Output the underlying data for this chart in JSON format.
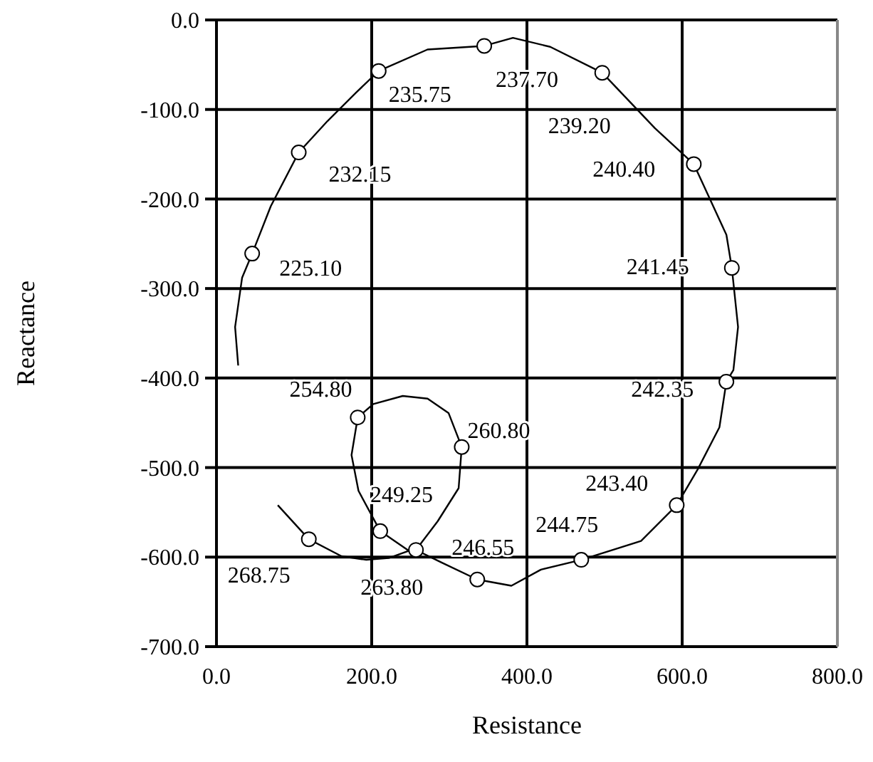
{
  "chart_data": {
    "type": "line",
    "xlabel": "Resistance",
    "ylabel": "Reactance",
    "xlim": [
      0,
      800
    ],
    "ylim": [
      -700,
      0
    ],
    "xticks": [
      {
        "value": 0,
        "label": "0.0"
      },
      {
        "value": 200,
        "label": "200.0"
      },
      {
        "value": 400,
        "label": "400.0"
      },
      {
        "value": 600,
        "label": "600.0"
      },
      {
        "value": 800,
        "label": "800.0"
      }
    ],
    "yticks": [
      {
        "value": -700,
        "label": "-700.0"
      },
      {
        "value": -600,
        "label": "-600.0"
      },
      {
        "value": -500,
        "label": "-500.0"
      },
      {
        "value": -400,
        "label": "-400.0"
      },
      {
        "value": -300,
        "label": "-300.0"
      },
      {
        "value": -200,
        "label": "-200.0"
      },
      {
        "value": -100,
        "label": "-100.0"
      },
      {
        "value": 0,
        "label": "0.0"
      }
    ],
    "grid": true,
    "series": [
      {
        "type": "line",
        "color": "#000000",
        "marker": "none",
        "x": [
          28,
          24,
          33,
          46,
          70,
          106,
          143,
          180,
          209,
          272,
          345,
          382,
          430,
          497,
          565,
          615,
          657,
          664,
          672,
          666,
          657,
          648,
          620,
          593,
          547,
          470,
          418,
          380,
          336,
          290,
          257,
          285,
          312,
          316,
          299,
          272,
          240,
          202,
          182,
          174,
          183,
          211,
          248,
          222,
          193,
          161,
          119,
          79
        ],
        "values": [
          -386,
          -343,
          -288,
          -261,
          -208,
          -148,
          -113,
          -81,
          -57,
          -33,
          -29,
          -20,
          -30,
          -59,
          -121,
          -161,
          -240,
          -277,
          -343,
          -391,
          -404,
          -455,
          -502,
          -542,
          -582,
          -603,
          -614,
          -632,
          -625,
          -606,
          -592,
          -560,
          -523,
          -477,
          -439,
          -423,
          -420,
          -429,
          -444,
          -486,
          -526,
          -571,
          -593,
          -601,
          -603,
          -599,
          -580,
          -542
        ]
      },
      {
        "type": "scatter",
        "color": "#000000",
        "marker": "circle",
        "x": [
          46,
          106,
          209,
          345,
          497,
          615,
          664,
          657,
          593,
          470,
          336,
          257,
          316,
          182,
          211,
          119
        ],
        "values": [
          -261,
          -148,
          -57,
          -29,
          -59,
          -161,
          -277,
          -404,
          -542,
          -603,
          -625,
          -592,
          -477,
          -444,
          -571,
          -580
        ]
      }
    ],
    "annotations": [
      {
        "text": "225.10",
        "x": 46,
        "y": -261
      },
      {
        "text": "232.15",
        "x": 106,
        "y": -148
      },
      {
        "text": "235.75",
        "x": 209,
        "y": -57
      },
      {
        "text": "237.70",
        "x": 345,
        "y": -29
      },
      {
        "text": "239.20",
        "x": 497,
        "y": -59
      },
      {
        "text": "240.40",
        "x": 615,
        "y": -161
      },
      {
        "text": "241.45",
        "x": 664,
        "y": -277
      },
      {
        "text": "242.35",
        "x": 657,
        "y": -404
      },
      {
        "text": "243.40",
        "x": 593,
        "y": -542
      },
      {
        "text": "244.75",
        "x": 470,
        "y": -603
      },
      {
        "text": "246.55",
        "x": 257,
        "y": -592
      },
      {
        "text": "249.25",
        "x": 211,
        "y": -571
      },
      {
        "text": "254.80",
        "x": 182,
        "y": -444
      },
      {
        "text": "260.80",
        "x": 316,
        "y": -477
      },
      {
        "text": "263.80",
        "x": 336,
        "y": -625
      },
      {
        "text": "268.75",
        "x": 119,
        "y": -580
      }
    ]
  }
}
